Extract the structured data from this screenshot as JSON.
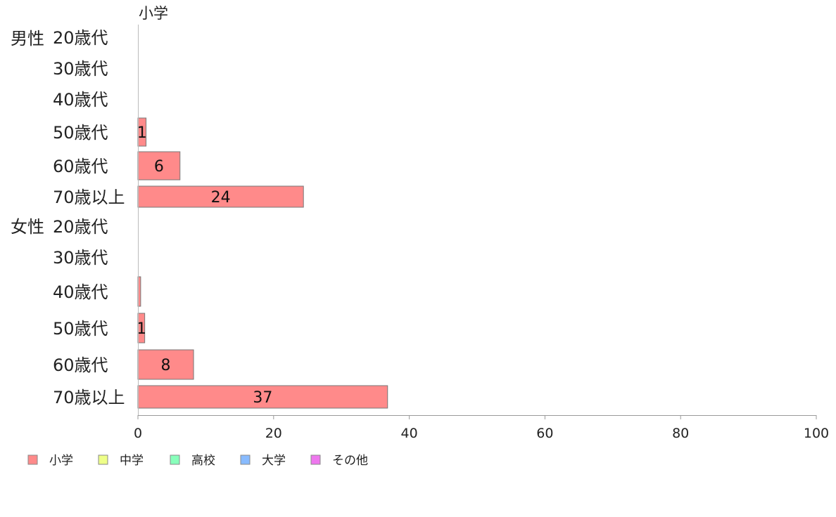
{
  "chart_data": {
    "type": "bar",
    "orientation": "horizontal",
    "title": "小学",
    "groups": [
      {
        "label": "男性",
        "categories": [
          "20歳代",
          "30歳代",
          "40歳代",
          "50歳代",
          "60歳代",
          "70歳以上"
        ]
      },
      {
        "label": "女性",
        "categories": [
          "20歳代",
          "30歳代",
          "40歳代",
          "50歳代",
          "60歳代",
          "70歳以上"
        ]
      }
    ],
    "series": [
      {
        "name": "小学",
        "values": [
          0,
          0,
          0,
          1.2,
          6.2,
          24.4,
          0,
          0,
          0.4,
          1.0,
          8.2,
          36.8
        ],
        "labels": [
          "",
          "",
          "",
          "1",
          "6",
          "24",
          "",
          "",
          "",
          "1",
          "8",
          "37"
        ]
      }
    ],
    "xlim": [
      0,
      100
    ],
    "xticks": [
      "0",
      "20",
      "40",
      "60",
      "80",
      "100"
    ],
    "xlabel": "",
    "ylabel": "",
    "grid": false,
    "legend": {
      "placement": "bottom-left",
      "items": [
        {
          "label": "小学",
          "color": "#ff8a8a"
        },
        {
          "label": "中学",
          "color": "#eeff88"
        },
        {
          "label": "高校",
          "color": "#88ffbb"
        },
        {
          "label": "大学",
          "color": "#88bbff"
        },
        {
          "label": "その他",
          "color": "#ee77ee"
        }
      ]
    },
    "bar_color": "#ff8a8a",
    "bar_stroke": "#777777"
  }
}
